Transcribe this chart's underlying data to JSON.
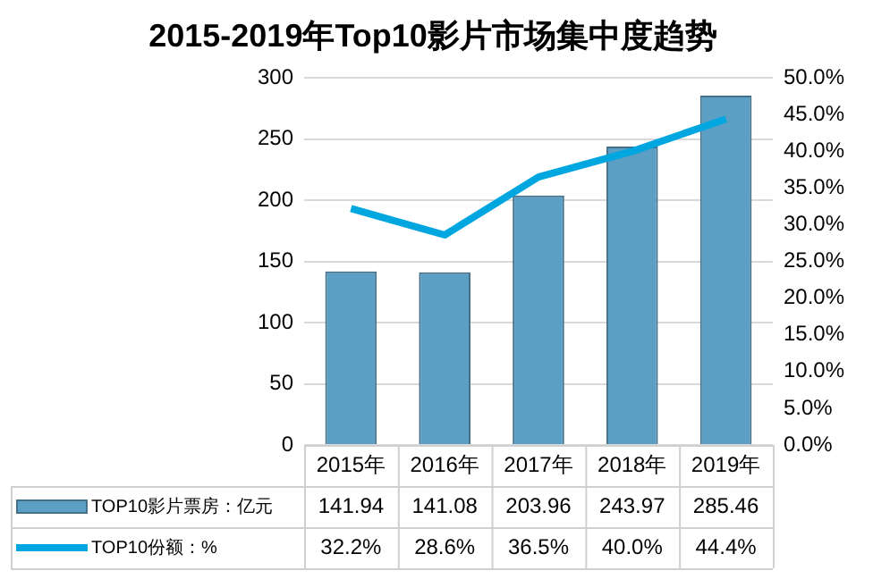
{
  "chart_data": {
    "type": "bar",
    "title": "2015-2019年Top10影片市场集中度趋势",
    "categories": [
      "2015年",
      "2016年",
      "2017年",
      "2018年",
      "2019年"
    ],
    "series": [
      {
        "name": "TOP10影片票房：亿元",
        "color": "#5b9fc4",
        "values": [
          141.94,
          141.08,
          203.96,
          243.97,
          285.46
        ]
      },
      {
        "name": "TOP10份额：%",
        "type": "line",
        "axis": "y2",
        "color": "#00a6e0",
        "values": [
          32.2,
          28.6,
          36.5,
          40.0,
          44.4
        ],
        "value_labels": [
          "32.2%",
          "28.6%",
          "36.5%",
          "40.0%",
          "44.4%"
        ]
      }
    ],
    "ylim": [
      0,
      300
    ],
    "yticks": [
      0,
      50,
      100,
      150,
      200,
      250,
      300
    ],
    "y2lim": [
      0,
      50
    ],
    "y2ticks": [
      {
        "value": 0,
        "label": "0.0%"
      },
      {
        "value": 5,
        "label": "5.0%"
      },
      {
        "value": 10,
        "label": "10.0%"
      },
      {
        "value": 15,
        "label": "15.0%"
      },
      {
        "value": 20,
        "label": "20.0%"
      },
      {
        "value": 25,
        "label": "25.0%"
      },
      {
        "value": 30,
        "label": "30.0%"
      },
      {
        "value": 35,
        "label": "35.0%"
      },
      {
        "value": 40,
        "label": "40.0%"
      },
      {
        "value": 45,
        "label": "45.0%"
      },
      {
        "value": 50,
        "label": "50.0%"
      }
    ],
    "grid": "y",
    "legend": "bottom",
    "data_labels": true
  }
}
